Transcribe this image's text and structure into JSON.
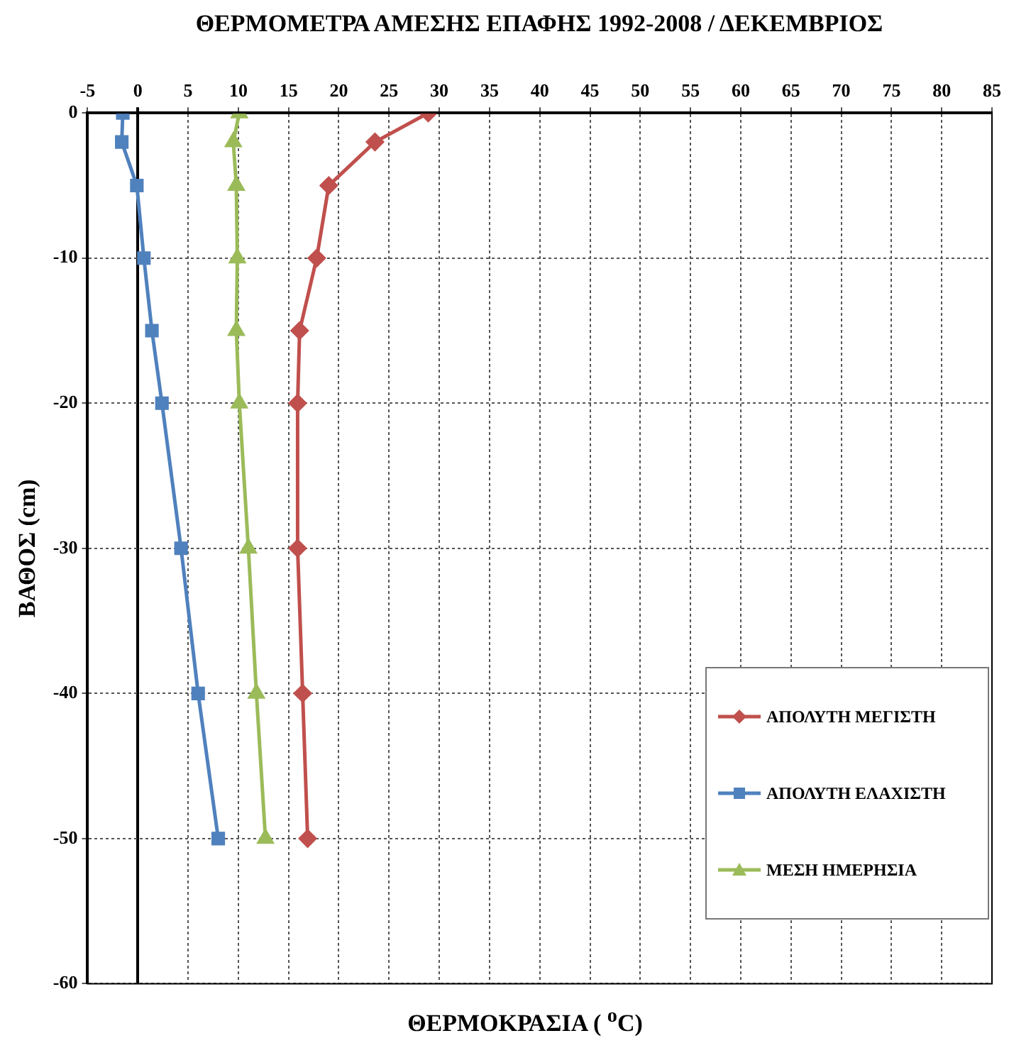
{
  "chart_data": {
    "type": "line",
    "title": "ΘΕΡΜΟΜΕΤΡΑ ΑΜΕΣΗΣ ΕΠΑΦΗΣ  1992-2008 / ΔΕΚΕΜΒΡΙΟΣ",
    "xlabel": "ΘΕΡΜΟΚΡΑΣΙΑ ( $^{o}$C)",
    "ylabel": "ΒΑΘΟΣ (cm)",
    "xlim": [
      -5,
      85
    ],
    "xticks": [
      -5,
      0,
      5,
      10,
      15,
      20,
      25,
      30,
      35,
      40,
      45,
      50,
      55,
      60,
      65,
      70,
      75,
      80,
      85
    ],
    "ylim": [
      -60,
      0
    ],
    "yticks": [
      -60,
      -50,
      -40,
      -30,
      -20,
      -10,
      0
    ],
    "grid": true,
    "legend": "bottom right",
    "line_style": "solid",
    "series": [
      {
        "name": "ΑΠΟΛΥΤΗ ΜΕΓΙΣΤΗ",
        "color": "#c0504d",
        "marker": "diamond",
        "x": [
          28.9,
          23.6,
          19.0,
          17.8,
          16.1,
          15.9,
          15.9,
          16.4,
          16.9
        ],
        "values": [
          0,
          -2,
          -5,
          -10,
          -15,
          -20,
          -30,
          -40,
          -50
        ]
      },
      {
        "name": "ΑΠΟΛΥΤΗ ΕΛΑΧΙΣΤΗ",
        "color": "#4f81bd",
        "marker": "square",
        "x": [
          -1.5,
          -1.6,
          -0.1,
          0.6,
          1.4,
          2.4,
          4.3,
          6.0,
          8.0
        ],
        "values": [
          0,
          -2,
          -5,
          -10,
          -15,
          -20,
          -30,
          -40,
          -50
        ]
      },
      {
        "name": "ΜΕΣΗ ΗΜΕΡΗΣΙΑ",
        "color": "#9bbb59",
        "marker": "triangle",
        "x": [
          10.1,
          9.5,
          9.8,
          9.9,
          9.8,
          10.1,
          11.0,
          11.8,
          12.7
        ],
        "values": [
          0,
          -2,
          -5,
          -10,
          -15,
          -20,
          -30,
          -40,
          -50
        ]
      }
    ]
  }
}
